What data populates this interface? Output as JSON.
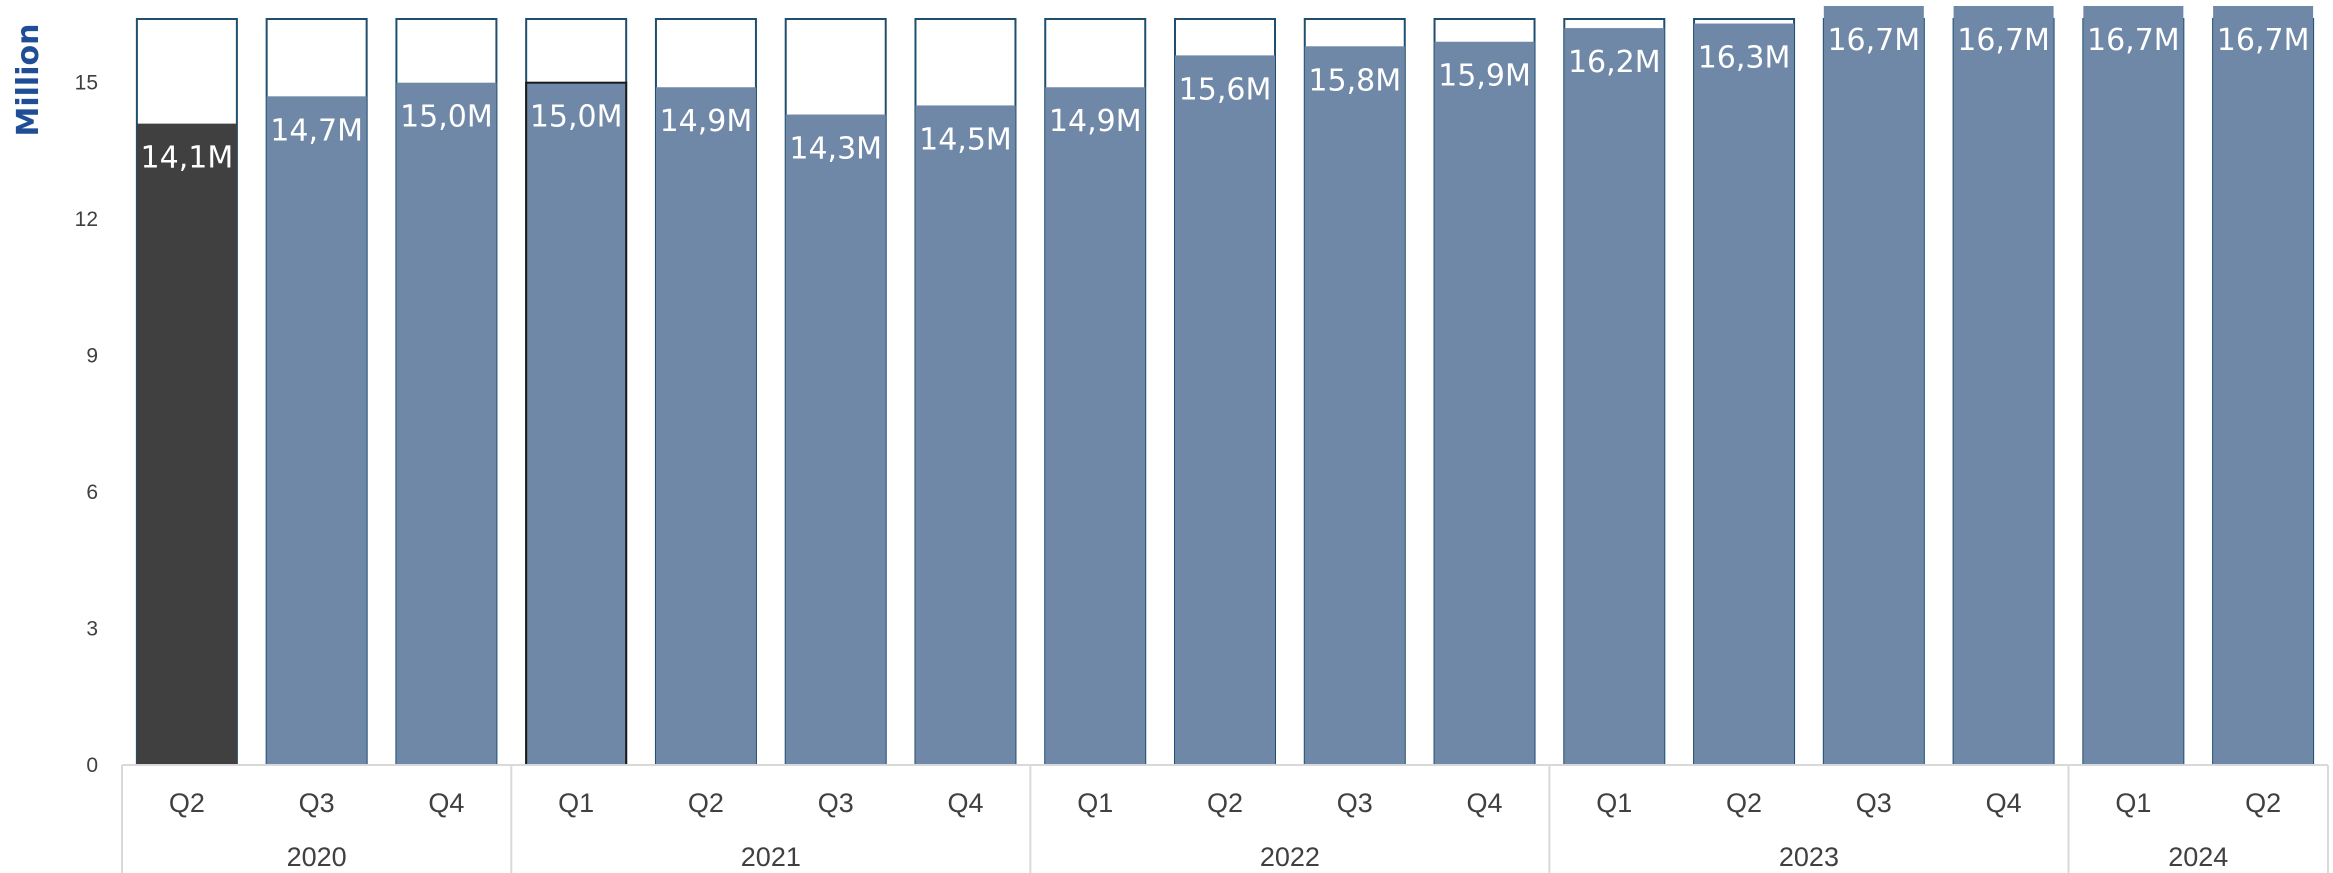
{
  "chart_data": {
    "type": "bar",
    "ylabel": "Million",
    "ylim": [
      0,
      16.4
    ],
    "yticks": [
      0,
      3,
      6,
      9,
      12,
      15
    ],
    "x": [
      {
        "year": "2020",
        "quarter": "Q2"
      },
      {
        "year": "2020",
        "quarter": "Q3"
      },
      {
        "year": "2020",
        "quarter": "Q4"
      },
      {
        "year": "2021",
        "quarter": "Q1"
      },
      {
        "year": "2021",
        "quarter": "Q2"
      },
      {
        "year": "2021",
        "quarter": "Q3"
      },
      {
        "year": "2021",
        "quarter": "Q4"
      },
      {
        "year": "2022",
        "quarter": "Q1"
      },
      {
        "year": "2022",
        "quarter": "Q2"
      },
      {
        "year": "2022",
        "quarter": "Q3"
      },
      {
        "year": "2022",
        "quarter": "Q4"
      },
      {
        "year": "2023",
        "quarter": "Q1"
      },
      {
        "year": "2023",
        "quarter": "Q2"
      },
      {
        "year": "2023",
        "quarter": "Q3"
      },
      {
        "year": "2023",
        "quarter": "Q4"
      },
      {
        "year": "2024",
        "quarter": "Q1"
      },
      {
        "year": "2024",
        "quarter": "Q2"
      }
    ],
    "years": [
      "2020",
      "2021",
      "2022",
      "2023",
      "2024"
    ],
    "values": [
      14.1,
      14.7,
      15.0,
      15.0,
      14.9,
      14.3,
      14.5,
      14.9,
      15.6,
      15.8,
      15.9,
      16.2,
      16.3,
      16.7,
      16.7,
      16.7,
      16.7
    ],
    "labels": [
      "14,1M",
      "14,7M",
      "15,0M",
      "15,0M",
      "14,9M",
      "14,3M",
      "14,5M",
      "14,9M",
      "15,6M",
      "15,8M",
      "15,9M",
      "16,2M",
      "16,3M",
      "16,7M",
      "16,7M",
      "16,7M",
      "16,7M"
    ],
    "grid": false,
    "legend": "none",
    "colors": {
      "highlight": "#404040",
      "bar": "#6f88a8",
      "outline": "#1f4e6e",
      "axis": "#d9d9d9",
      "ylabel": "#1f4e96"
    }
  }
}
